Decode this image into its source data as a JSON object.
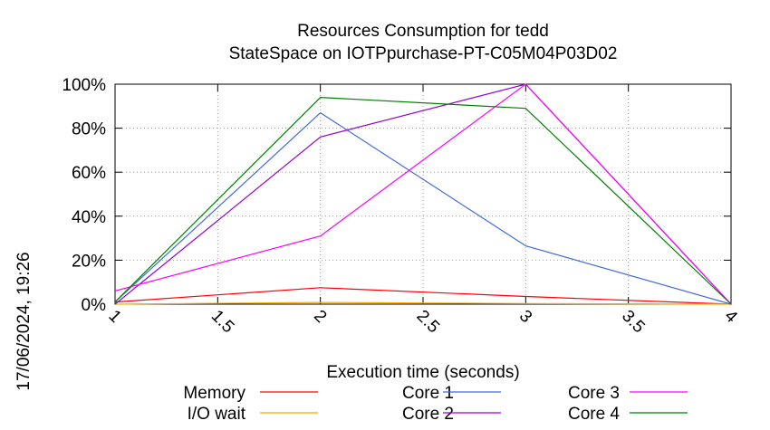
{
  "chart_data": {
    "type": "line",
    "title_line1": "Resources Consumption for tedd",
    "title_line2": "StateSpace on IOTPpurchase-PT-C05M04P03D02",
    "xlabel": "Execution time (seconds)",
    "ylabel": "",
    "side_label": "17/06/2024, 19:26",
    "xlim": [
      1,
      4
    ],
    "ylim": [
      0,
      100
    ],
    "x_ticks": [
      1,
      1.5,
      2,
      2.5,
      3,
      3.5,
      4
    ],
    "x_tick_labels": [
      "1",
      "1.5",
      "2",
      "2.5",
      "3",
      "3.5",
      "4"
    ],
    "y_ticks": [
      0,
      20,
      40,
      60,
      80,
      100
    ],
    "y_tick_labels": [
      "0%",
      "20%",
      "40%",
      "60%",
      "80%",
      "100%"
    ],
    "grid": true,
    "legend_placement": "bottom",
    "x": [
      1,
      2,
      3,
      4
    ],
    "series": [
      {
        "name": "Memory",
        "color": "#ff0000",
        "values": [
          1,
          7.5,
          3.5,
          0
        ]
      },
      {
        "name": "I/O wait",
        "color": "#ffa500",
        "values": [
          0,
          0.8,
          0.3,
          0
        ]
      },
      {
        "name": "Core 1",
        "color": "#4169e1",
        "values": [
          1,
          87,
          26.5,
          0
        ]
      },
      {
        "name": "Core 2",
        "color": "#9400d3",
        "values": [
          0,
          76,
          100,
          0
        ]
      },
      {
        "name": "Core 3",
        "color": "#ff00ff",
        "values": [
          6,
          31,
          100,
          0
        ]
      },
      {
        "name": "Core 4",
        "color": "#008000",
        "values": [
          1,
          94,
          89,
          0
        ]
      }
    ]
  }
}
